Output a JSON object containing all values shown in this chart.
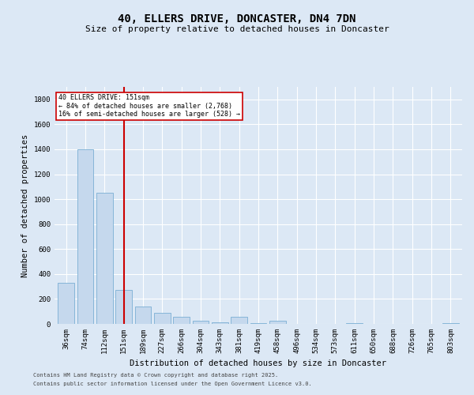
{
  "title1": "40, ELLERS DRIVE, DONCASTER, DN4 7DN",
  "title2": "Size of property relative to detached houses in Doncaster",
  "xlabel": "Distribution of detached houses by size in Doncaster",
  "ylabel": "Number of detached properties",
  "categories": [
    "36sqm",
    "74sqm",
    "112sqm",
    "151sqm",
    "189sqm",
    "227sqm",
    "266sqm",
    "304sqm",
    "343sqm",
    "381sqm",
    "419sqm",
    "458sqm",
    "496sqm",
    "534sqm",
    "573sqm",
    "611sqm",
    "650sqm",
    "688sqm",
    "726sqm",
    "765sqm",
    "803sqm"
  ],
  "values": [
    330,
    1400,
    1050,
    270,
    140,
    90,
    55,
    25,
    10,
    55,
    5,
    25,
    0,
    0,
    0,
    5,
    0,
    0,
    0,
    0,
    5
  ],
  "bar_color": "#c5d8ed",
  "bar_edge_color": "#7aafd4",
  "red_line_index": 3,
  "red_line_color": "#cc0000",
  "annotation_line1": "40 ELLERS DRIVE: 151sqm",
  "annotation_line2": "← 84% of detached houses are smaller (2,768)",
  "annotation_line3": "16% of semi-detached houses are larger (528) →",
  "annotation_box_color": "#ffffff",
  "annotation_box_edge": "#cc0000",
  "ylim": [
    0,
    1900
  ],
  "yticks": [
    0,
    200,
    400,
    600,
    800,
    1000,
    1200,
    1400,
    1600,
    1800
  ],
  "background_color": "#dce8f5",
  "plot_bg_color": "#dce8f5",
  "footer1": "Contains HM Land Registry data © Crown copyright and database right 2025.",
  "footer2": "Contains public sector information licensed under the Open Government Licence v3.0.",
  "title_fontsize": 10,
  "subtitle_fontsize": 8,
  "tick_fontsize": 6.5,
  "label_fontsize": 7.5,
  "footer_fontsize": 5.0
}
